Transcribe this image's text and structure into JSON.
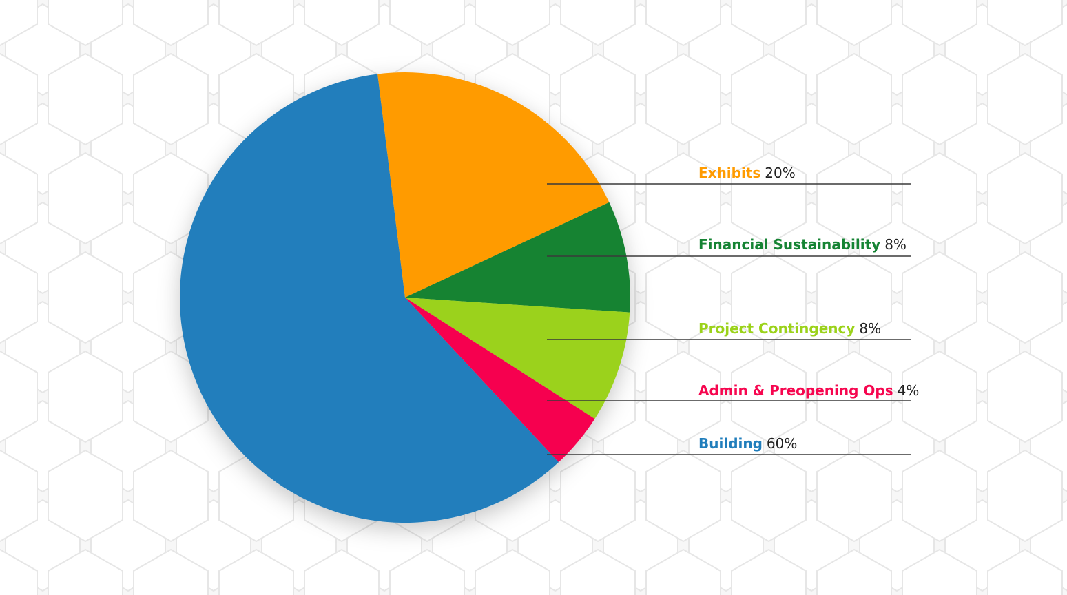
{
  "chart_data": {
    "type": "pie",
    "slices": [
      {
        "label": "Building",
        "value": 60,
        "value_label": "60%",
        "color": "#217ebc"
      },
      {
        "label": "Exhibits",
        "value": 20,
        "value_label": "20%",
        "color": "#ff9b00"
      },
      {
        "label": "Financial Sustainability",
        "value": 8,
        "value_label": "8%",
        "color": "#158333"
      },
      {
        "label": "Project Contingency",
        "value": 8,
        "value_label": "8%",
        "color": "#9bd21a"
      },
      {
        "label": "Admin & Preopening Ops",
        "value": 4,
        "value_label": "4%",
        "color": "#f6064f"
      }
    ],
    "legend_order": [
      "Exhibits",
      "Financial Sustainability",
      "Project Contingency",
      "Admin & Preopening Ops",
      "Building"
    ],
    "legend_placement": "right"
  },
  "background": {
    "color": "#f7f7f7",
    "pattern": "hexagon"
  }
}
